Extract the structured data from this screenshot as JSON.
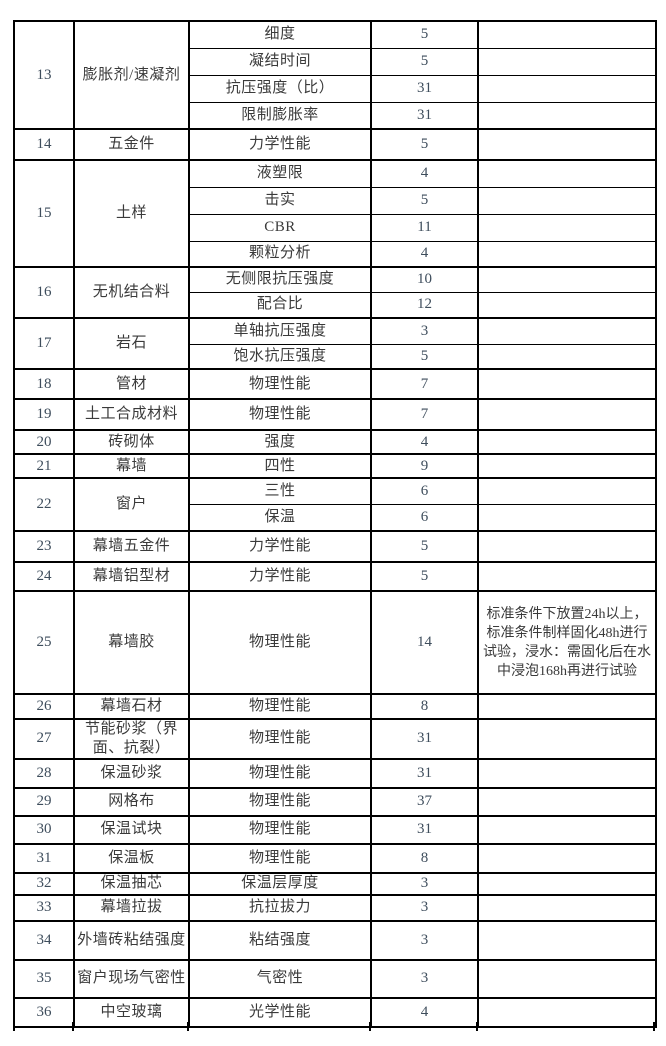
{
  "page": {
    "background": "#ffffff"
  },
  "colors": {
    "border": "#000000",
    "text": "#3a3a3a",
    "number_text": "#3e4d5c"
  },
  "table": {
    "rows": [
      {
        "no": "13",
        "material": "膨胀剂/速凝剂",
        "items": [
          {
            "item": "细度",
            "count": "5",
            "remark": ""
          },
          {
            "item": "凝结时间",
            "count": "5",
            "remark": ""
          },
          {
            "item": "抗压强度（比）",
            "count": "31",
            "remark": ""
          },
          {
            "item": "限制膨胀率",
            "count": "31",
            "remark": ""
          }
        ]
      },
      {
        "no": "14",
        "material": "五金件",
        "items": [
          {
            "item": "力学性能",
            "count": "5",
            "remark": ""
          }
        ]
      },
      {
        "no": "15",
        "material": "土样",
        "items": [
          {
            "item": "液塑限",
            "count": "4",
            "remark": ""
          },
          {
            "item": "击实",
            "count": "5",
            "remark": ""
          },
          {
            "item": "CBR",
            "count": "11",
            "remark": ""
          },
          {
            "item": "颗粒分析",
            "count": "4",
            "remark": ""
          }
        ]
      },
      {
        "no": "16",
        "material": "无机结合料",
        "items": [
          {
            "item": "无侧限抗压强度",
            "count": "10",
            "remark": ""
          },
          {
            "item": "配合比",
            "count": "12",
            "remark": ""
          }
        ]
      },
      {
        "no": "17",
        "material": "岩石",
        "items": [
          {
            "item": "单轴抗压强度",
            "count": "3",
            "remark": ""
          },
          {
            "item": "饱水抗压强度",
            "count": "5",
            "remark": ""
          }
        ]
      },
      {
        "no": "18",
        "material": "管材",
        "items": [
          {
            "item": "物理性能",
            "count": "7",
            "remark": ""
          }
        ]
      },
      {
        "no": "19",
        "material": "土工合成材料",
        "items": [
          {
            "item": "物理性能",
            "count": "7",
            "remark": ""
          }
        ]
      },
      {
        "no": "20",
        "material": "砖砌体",
        "items": [
          {
            "item": "强度",
            "count": "4",
            "remark": ""
          }
        ]
      },
      {
        "no": "21",
        "material": "幕墙",
        "items": [
          {
            "item": "四性",
            "count": "9",
            "remark": ""
          }
        ]
      },
      {
        "no": "22",
        "material": "窗户",
        "items": [
          {
            "item": "三性",
            "count": "6",
            "remark": ""
          },
          {
            "item": "保温",
            "count": "6",
            "remark": ""
          }
        ]
      },
      {
        "no": "23",
        "material": "幕墙五金件",
        "items": [
          {
            "item": "力学性能",
            "count": "5",
            "remark": ""
          }
        ]
      },
      {
        "no": "24",
        "material": "幕墙铝型材",
        "items": [
          {
            "item": "力学性能",
            "count": "5",
            "remark": ""
          }
        ]
      },
      {
        "no": "25",
        "material": "幕墙胶",
        "items": [
          {
            "item": "物理性能",
            "count": "14",
            "remark": "标准条件下放置24h以上，标准条件制样固化48h进行试验，浸水：需固化后在水中浸泡168h再进行试验"
          }
        ]
      },
      {
        "no": "26",
        "material": "幕墙石材",
        "items": [
          {
            "item": "物理性能",
            "count": "8",
            "remark": ""
          }
        ]
      },
      {
        "no": "27",
        "material": "节能砂浆（界面、抗裂）",
        "items": [
          {
            "item": "物理性能",
            "count": "31",
            "remark": ""
          }
        ]
      },
      {
        "no": "28",
        "material": "保温砂浆",
        "items": [
          {
            "item": "物理性能",
            "count": "31",
            "remark": ""
          }
        ]
      },
      {
        "no": "29",
        "material": "网格布",
        "items": [
          {
            "item": "物理性能",
            "count": "37",
            "remark": ""
          }
        ]
      },
      {
        "no": "30",
        "material": "保温试块",
        "items": [
          {
            "item": "物理性能",
            "count": "31",
            "remark": ""
          }
        ]
      },
      {
        "no": "31",
        "material": "保温板",
        "items": [
          {
            "item": "物理性能",
            "count": "8",
            "remark": ""
          }
        ]
      },
      {
        "no": "32",
        "material": "保温抽芯",
        "items": [
          {
            "item": "保温层厚度",
            "count": "3",
            "remark": ""
          }
        ]
      },
      {
        "no": "33",
        "material": "幕墙拉拔",
        "items": [
          {
            "item": "抗拉拔力",
            "count": "3",
            "remark": ""
          }
        ]
      },
      {
        "no": "34",
        "material": "外墙砖粘结强度",
        "items": [
          {
            "item": "粘结强度",
            "count": "3",
            "remark": ""
          }
        ]
      },
      {
        "no": "35",
        "material": "窗户现场气密性",
        "items": [
          {
            "item": "气密性",
            "count": "3",
            "remark": ""
          }
        ]
      },
      {
        "no": "36",
        "material": "中空玻璃",
        "items": [
          {
            "item": "光学性能",
            "count": "4",
            "remark": ""
          }
        ]
      }
    ]
  }
}
